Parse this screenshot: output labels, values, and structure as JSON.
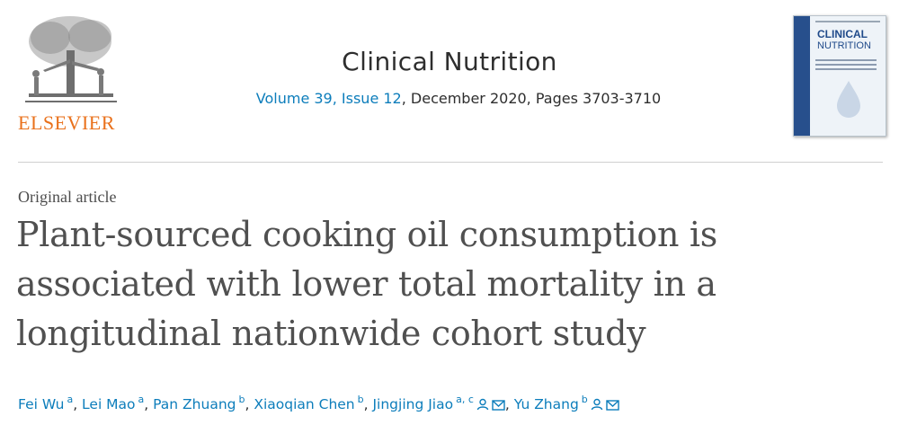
{
  "publisher": {
    "name": "ELSEVIER",
    "icon": "elsevier-tree-logo",
    "brand_color": "#e9711c"
  },
  "journal": {
    "title": "Clinical Nutrition",
    "volume_link": "Volume 39, Issue 12",
    "issue_rest": ", December 2020, Pages 3703-3710",
    "cover_line1": "CLINICAL",
    "cover_line2": "NUTRITION"
  },
  "article": {
    "type": "Original article",
    "title": "Plant-sourced cooking oil consumption is associated with lower total mortality in a longitudinal nationwide cohort study"
  },
  "authors": [
    {
      "name": "Fei Wu",
      "affiliation": "a",
      "sep": ", "
    },
    {
      "name": "Lei Mao",
      "affiliation": "a",
      "sep": ", "
    },
    {
      "name": "Pan Zhuang",
      "affiliation": "b",
      "sep": ", "
    },
    {
      "name": "Xiaoqian Chen",
      "affiliation": "b",
      "sep": ", "
    },
    {
      "name": "Jingjing Jiao",
      "affiliation": "a, c",
      "sep": ", ",
      "icons": [
        "person-icon",
        "email-icon"
      ]
    },
    {
      "name": "Yu Zhang",
      "affiliation": "b",
      "sep": "",
      "icons": [
        "person-icon",
        "email-icon"
      ]
    }
  ],
  "colors": {
    "link": "#0c7dbb",
    "text": "#2e2e2e",
    "title": "#505050"
  }
}
